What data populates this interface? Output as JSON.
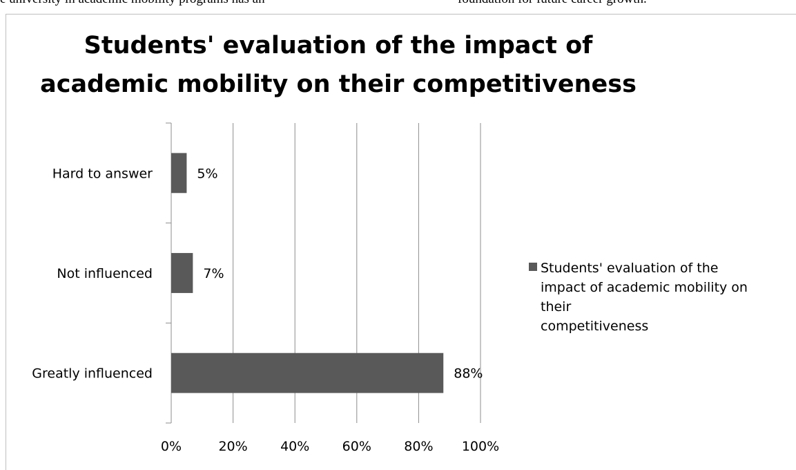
{
  "page_text": {
    "left": "e university in academic mobility programs has an",
    "right": "foundation for future career growth."
  },
  "colors": {
    "bar": "#595959",
    "grid": "#8c8c8c",
    "axis": "#8c8c8c"
  },
  "chart_data": {
    "type": "bar",
    "orientation": "horizontal",
    "title_lines": [
      "Students' evaluation of the impact of",
      "academic mobility on their competitiveness"
    ],
    "categories": [
      "Greatly influenced",
      "Not influenced",
      "Hard to answer"
    ],
    "series": [
      {
        "name_lines": [
          "Students' evaluation of the",
          "impact of academic mobility on",
          "their",
          "competitiveness"
        ],
        "values": [
          88,
          7,
          5
        ],
        "data_labels": [
          "88%",
          "7%",
          "5%"
        ]
      }
    ],
    "x_ticks": [
      0,
      20,
      40,
      60,
      80,
      100
    ],
    "x_tick_labels": [
      "0%",
      "20%",
      "40%",
      "60%",
      "80%",
      "100%"
    ],
    "xlim": [
      0,
      100
    ],
    "grid": "vertical major gridlines",
    "legend_position": "right"
  }
}
